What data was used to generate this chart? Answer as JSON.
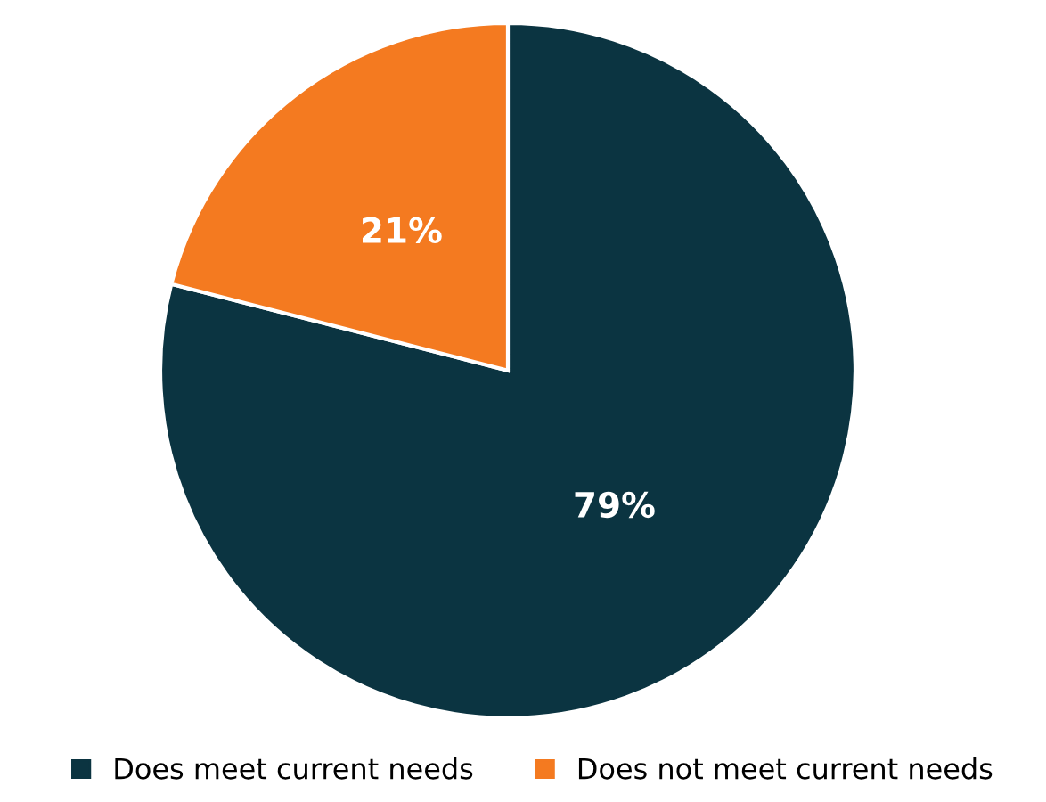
{
  "chart_data": {
    "type": "pie",
    "categories": [
      "Does meet current needs",
      "Does not meet current needs"
    ],
    "values": [
      79,
      21
    ],
    "colors": [
      "#0b3441",
      "#f47a20"
    ],
    "value_labels": [
      "79%",
      "21%"
    ],
    "legend": "bottom"
  }
}
